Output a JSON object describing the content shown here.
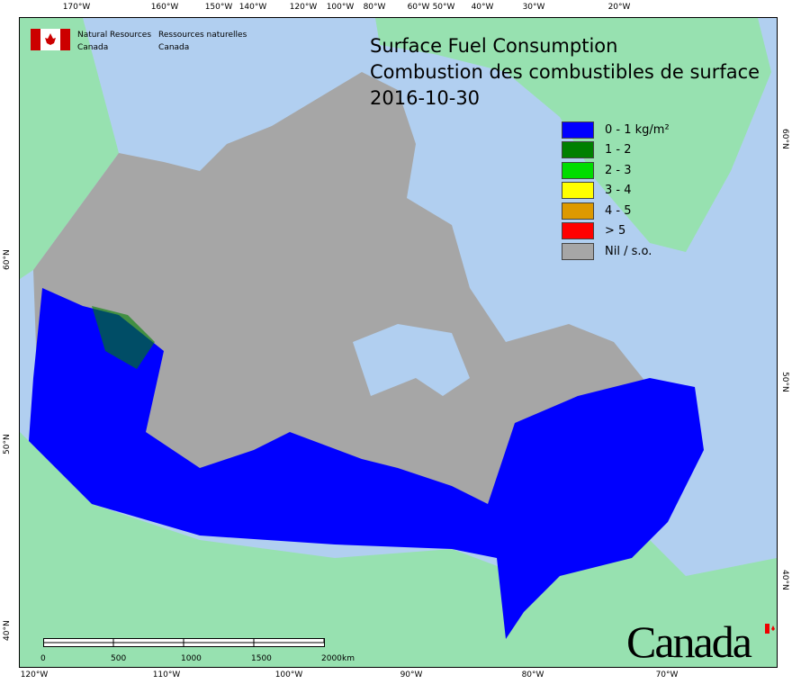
{
  "agency": {
    "en_line1": "Natural Resources",
    "en_line2": "Canada",
    "fr_line1": "Ressources naturelles",
    "fr_line2": "Canada"
  },
  "title": {
    "en": "Surface Fuel Consumption",
    "fr": "Combustion des combustibles de surface",
    "date": "2016-10-30"
  },
  "legend": [
    {
      "label": "0 - 1 kg/m²",
      "color": "#0000ff"
    },
    {
      "label": "1 - 2",
      "color": "#008000"
    },
    {
      "label": "2 - 3",
      "color": "#00dd00"
    },
    {
      "label": "3 - 4",
      "color": "#ffff00"
    },
    {
      "label": "4 - 5",
      "color": "#dd9900"
    },
    {
      "label": "> 5",
      "color": "#ff0000"
    },
    {
      "label": "Nil / s.o.",
      "color": "#a6a6a6"
    }
  ],
  "top_ticks": [
    "170°W",
    "160°W",
    "150°W",
    "140°W",
    "120°W",
    "100°W",
    "80°W",
    "60°W",
    "50°W",
    "40°W",
    "30°W",
    "20°W"
  ],
  "bottom_ticks": [
    "120°W",
    "110°W",
    "100°W",
    "90°W",
    "80°W",
    "70°W"
  ],
  "left_ticks": [
    "60°N",
    "50°N",
    "40°N"
  ],
  "right_ticks": [
    "60°N",
    "50°N",
    "40°N"
  ],
  "scale_bar": {
    "labels": [
      "0",
      "500",
      "1000",
      "1500",
      "2000"
    ],
    "unit": "km"
  },
  "wordmark": "Canada",
  "colors": {
    "water": "#b1cff0",
    "foreign_land": "#97e1b0",
    "nil": "#a6a6a6",
    "low": "#0000ff"
  }
}
